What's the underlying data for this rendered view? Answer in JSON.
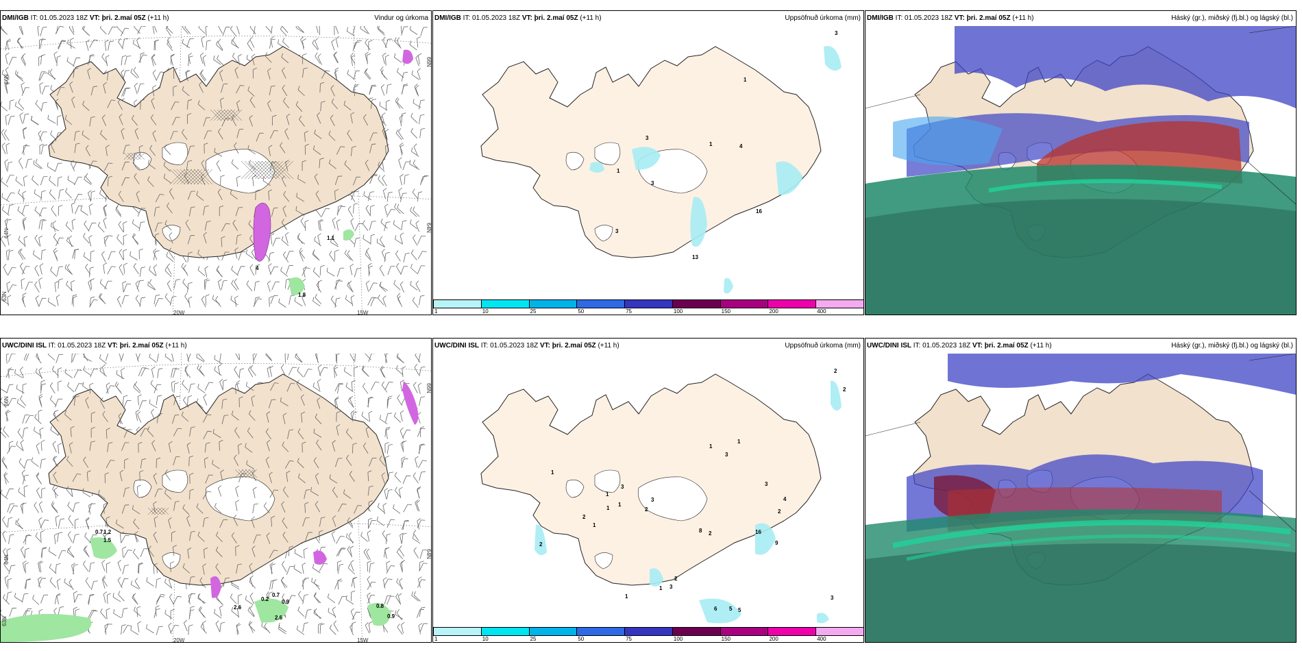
{
  "header": {
    "it_label": "IT:",
    "it_value": "01.05.2023 18Z",
    "vt_label": "VT: þri. 2.maí 05Z",
    "lead": "(+11 h)"
  },
  "models": {
    "top": "DMI/IGB",
    "bottom": "UWC/DINI ISL"
  },
  "panel_titles": {
    "wind": "Vindur og úrkoma",
    "accum": "Uppsöfnuð úrkoma (mm)",
    "cloud": "Háský (gr.), miðský (fj.bl.) og lágský (bl.)"
  },
  "grid_labels": {
    "lat66": "66N",
    "lat64": "64N",
    "lat63": "63N",
    "lon20": "20W",
    "lon15": "15W",
    "lat_left": "63N"
  },
  "colorbar": {
    "ticks": [
      "1",
      "10",
      "25",
      "50",
      "75",
      "100",
      "150",
      "200",
      "400"
    ],
    "colors": [
      "#b8f3f7",
      "#00e5f2",
      "#00b4ea",
      "#2e6ae6",
      "#3535c0",
      "#6b0050",
      "#a80080",
      "#ee00aa",
      "#f4aaf0"
    ]
  },
  "colors": {
    "land": "#f2e1cc",
    "land_accum": "#fdf1e4",
    "ice": "#ffffff",
    "coast": "#222222",
    "magenta": "#d266e0",
    "green": "#9fe6a0"
  },
  "wind_precip_labels": {
    "top": [
      "1.1",
      "4",
      "1.8"
    ],
    "bottom": [
      "0.7",
      "1.2",
      "1.5",
      "2.6",
      "0.2",
      "0.7",
      "0.9",
      "2.6",
      "0.8",
      "0.9"
    ]
  },
  "accum_labels": {
    "top": [
      "3",
      "1",
      "3",
      "1",
      "4",
      "3",
      "1",
      "3",
      "16",
      "13"
    ],
    "bottom": [
      "2",
      "2",
      "1",
      "1",
      "3",
      "1",
      "2",
      "1",
      "1",
      "1",
      "1",
      "3",
      "2",
      "2",
      "3",
      "3",
      "4",
      "16",
      "9",
      "2",
      "8",
      "2",
      "3",
      "6",
      "5",
      "5",
      "1",
      "3",
      "2",
      "1"
    ]
  }
}
